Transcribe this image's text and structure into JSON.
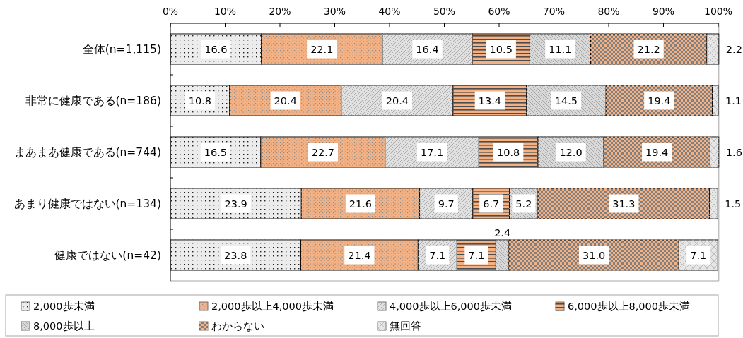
{
  "chart_data": {
    "type": "bar",
    "orientation": "horizontal",
    "stacked": true,
    "categories": [
      "全体(n=1,115)",
      "非常に健康である(n=186)",
      "まあまあ健康である(n=744)",
      "あまり健康ではない(n=134)",
      "健康ではない(n=42)"
    ],
    "series": [
      {
        "name": "2,000歩未満",
        "color": "#ececec",
        "values": [
          16.6,
          10.8,
          16.5,
          23.9,
          23.8
        ],
        "value_labels": [
          "16.6",
          "10.8",
          "16.5",
          "23.9",
          "23.8"
        ]
      },
      {
        "name": "2,000歩以上4,000歩未満",
        "color": "#f4b183",
        "values": [
          22.1,
          20.4,
          22.7,
          21.6,
          21.4
        ],
        "value_labels": [
          "22.1",
          "20.4",
          "22.7",
          "21.6",
          "21.4"
        ]
      },
      {
        "name": "4,000歩以上6,000歩未満",
        "color": "#e0e0e0",
        "values": [
          16.4,
          20.4,
          17.1,
          9.7,
          7.1
        ],
        "value_labels": [
          "16.4",
          "20.4",
          "17.1",
          "9.7",
          "7.1"
        ]
      },
      {
        "name": "6,000歩以上8,000歩未満",
        "color": "#f4b183",
        "values": [
          10.5,
          13.4,
          10.8,
          6.7,
          7.1
        ],
        "value_labels": [
          "10.5",
          "13.4",
          "10.8",
          "6.7",
          "7.1"
        ]
      },
      {
        "name": "8,000歩以上",
        "color": "#d8d8d8",
        "values": [
          11.1,
          14.5,
          12.0,
          5.2,
          2.4
        ],
        "value_labels": [
          "11.1",
          "14.5",
          "12.0",
          "5.2",
          "2.4"
        ]
      },
      {
        "name": "わからない",
        "color": "#808080",
        "values": [
          21.2,
          19.4,
          19.4,
          31.3,
          31.0
        ],
        "value_labels": [
          "21.2",
          "19.4",
          "19.4",
          "31.3",
          "31.0"
        ]
      },
      {
        "name": "無回答",
        "color": "#e6e6e6",
        "values": [
          2.2,
          1.1,
          1.6,
          1.5,
          7.1
        ],
        "value_labels": [
          "2.2",
          "1.1",
          "1.6",
          "1.5",
          "7.1"
        ]
      }
    ],
    "xlim": [
      0,
      100.1
    ],
    "xticks": [
      {
        "value": 0,
        "label": "0%"
      },
      {
        "value": 10,
        "label": "10%"
      },
      {
        "value": 20,
        "label": "20%"
      },
      {
        "value": 30,
        "label": "30%"
      },
      {
        "value": 40,
        "label": "40%"
      },
      {
        "value": 50,
        "label": "50%"
      },
      {
        "value": 60,
        "label": "60%"
      },
      {
        "value": 70,
        "label": "70%"
      },
      {
        "value": 80,
        "label": "80%"
      },
      {
        "value": 90,
        "label": "90%"
      },
      {
        "value": 100,
        "label": "100%"
      }
    ],
    "legend": "bottom"
  }
}
